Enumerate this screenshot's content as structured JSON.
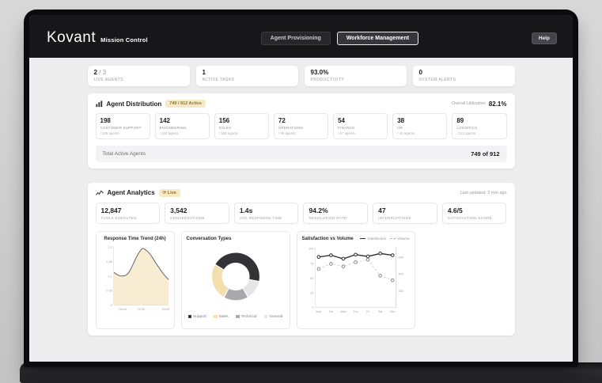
{
  "header": {
    "brand": "Kovant",
    "brand_sub": "Mission Control",
    "tabs": [
      {
        "label": "Agent Provisioning",
        "active": false
      },
      {
        "label": "Workforce Management",
        "active": true
      }
    ],
    "help_label": "Help"
  },
  "top_stats": {
    "items": [
      {
        "value": "2",
        "suffix": " / 3",
        "label": "LIVE AGENTS"
      },
      {
        "value": "1",
        "suffix": "",
        "label": "ACTIVE TASKS"
      },
      {
        "value": "93.0%",
        "suffix": "",
        "label": "PRODUCTIVITY"
      },
      {
        "value": "0",
        "suffix": "",
        "label": "SYSTEM ALERTS"
      }
    ]
  },
  "distribution": {
    "title": "Agent Distribution",
    "badge": "749 / 912 Active",
    "utilization_label": "Overall Utilization",
    "utilization_value": "82.1%",
    "departments": [
      {
        "active": "198",
        "name": "CUSTOMER SUPPORT",
        "capacity": "/ 245 agents"
      },
      {
        "active": "142",
        "name": "ENGINEERING",
        "capacity": "/ 156 agents"
      },
      {
        "active": "156",
        "name": "SALES",
        "capacity": "/ 189 agents"
      },
      {
        "active": "72",
        "name": "OPERATIONS",
        "capacity": "/ 98 agents"
      },
      {
        "active": "54",
        "name": "FINANCE",
        "capacity": "/ 67 agents"
      },
      {
        "active": "38",
        "name": "HR",
        "capacity": "/ 45 agents"
      },
      {
        "active": "89",
        "name": "LOGISTICS",
        "capacity": "/ 112 agents"
      }
    ],
    "footer_label": "Total Active Agents",
    "footer_value": "749 of 912"
  },
  "analytics": {
    "title": "Agent Analytics",
    "live_badge": "⟳ Live",
    "last_updated": "Last updated: 2 min ago",
    "stats": [
      {
        "value": "12,847",
        "label": "TASKS EXECUTED"
      },
      {
        "value": "3,542",
        "label": "CONVERSATIONS"
      },
      {
        "value": "1.4s",
        "label": "AVG RESPONSE TIME"
      },
      {
        "value": "94.2%",
        "label": "RESOLUTION RATE"
      },
      {
        "value": "47",
        "label": "INTERRUPTIONS"
      },
      {
        "value": "4.6/5",
        "label": "SATISFACTION SCORE"
      }
    ]
  },
  "chart_data": [
    {
      "type": "area",
      "title": "Response Time Trend (24h)",
      "x": [
        0,
        2,
        4,
        6,
        8,
        10,
        12,
        13,
        16,
        18,
        20,
        22,
        24
      ],
      "values": [
        1.25,
        1.12,
        1.1,
        1.15,
        1.45,
        1.85,
        2.12,
        2.18,
        1.95,
        1.65,
        1.4,
        1.15,
        0.97
      ],
      "ylim": [
        0,
        2.2
      ],
      "yticks": [
        0,
        0.55,
        1.1,
        1.65,
        2.2
      ],
      "xticks": [
        {
          "v": 4,
          "label": "04:00"
        },
        {
          "v": 12,
          "label": "12:00"
        },
        {
          "v": 24,
          "label": "24:00"
        }
      ],
      "fill": "#f8ecd2",
      "line": "#55555c",
      "xlabel": "",
      "ylabel": ""
    },
    {
      "type": "donut",
      "title": "Conversation Types",
      "slices": [
        {
          "label": "Support",
          "value": 45,
          "color": "#323237"
        },
        {
          "label": "Sales",
          "value": 25,
          "color": "#f3dfae"
        },
        {
          "label": "Technical",
          "value": 17,
          "color": "#a9a9ad"
        },
        {
          "label": "General",
          "value": 13,
          "color": "#e5e5e7"
        }
      ],
      "rotation_deg": -60,
      "clockwise_order": [
        0,
        3,
        2,
        1
      ],
      "legend_position": "bottom"
    },
    {
      "type": "line",
      "title": "Satisfaction vs Volume",
      "categories": [
        "Mon",
        "Tue",
        "Wed",
        "Thu",
        "Fri",
        "Sat",
        "Sun"
      ],
      "series": [
        {
          "name": "Satisfaction",
          "axis": "left",
          "style": "solid",
          "color": "#2b2b30",
          "values": [
            86,
            89,
            83,
            90,
            87,
            92,
            89
          ]
        },
        {
          "name": "Volume",
          "axis": "right",
          "style": "dashed",
          "color": "#a9a9ad",
          "values": [
            460,
            520,
            490,
            540,
            570,
            380,
            325
          ]
        }
      ],
      "left_ticks": [
        0,
        25,
        50,
        75,
        100
      ],
      "right_ticks": [
        200,
        400,
        600
      ],
      "left_lim": [
        0,
        100
      ],
      "right_lim": [
        0,
        700
      ],
      "legend_position": "top-right"
    }
  ]
}
